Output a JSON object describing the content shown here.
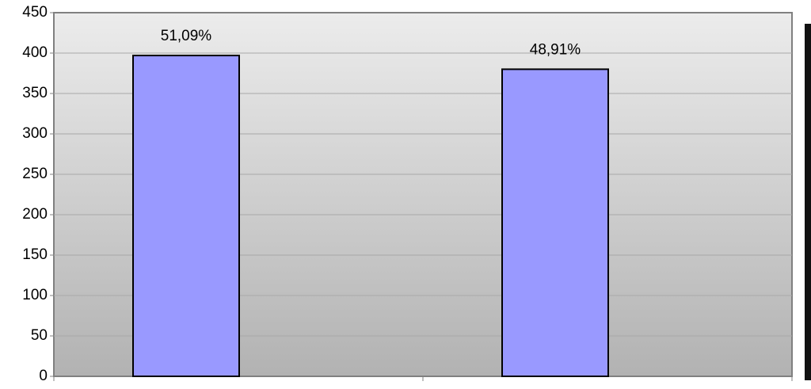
{
  "chart_data": {
    "type": "bar",
    "categories": [
      null,
      null
    ],
    "values": [
      397,
      380
    ],
    "annotations": [
      "51,09%",
      "48,91%"
    ],
    "color": "#9999ff",
    "ylim": [
      0,
      450
    ],
    "yticks": [
      0,
      50,
      100,
      150,
      200,
      250,
      300,
      350,
      400,
      450
    ],
    "grid": true
  }
}
